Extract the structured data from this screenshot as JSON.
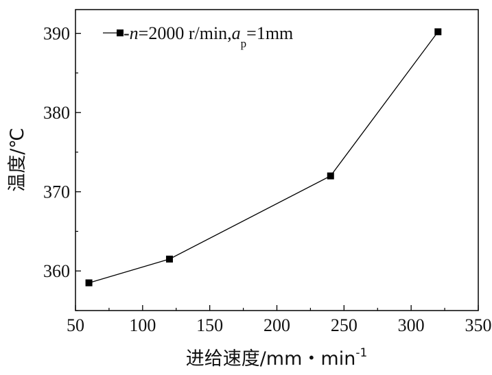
{
  "chart_data": {
    "type": "line",
    "xlabel": "进给速度/mm・min",
    "xlabel_sup": "-1",
    "ylabel": "温度/℃",
    "xlim": [
      50,
      350
    ],
    "ylim": [
      355,
      393
    ],
    "x_ticks": [
      "50",
      "100",
      "150",
      "200",
      "250",
      "300",
      "350"
    ],
    "y_ticks": [
      "360",
      "370",
      "380",
      "390"
    ],
    "x_tick_values": [
      50,
      100,
      150,
      200,
      250,
      300,
      350
    ],
    "y_tick_values": [
      360,
      370,
      380,
      390
    ],
    "grid": false,
    "legend_position": "top-left",
    "series": [
      {
        "legend": {
          "prefix": "-",
          "n_var": "n",
          "n_value": "=2000 r/min,",
          "a_var": "a",
          "a_sub": "p",
          "a_value": "=1mm"
        },
        "marker": "square",
        "color": "#000000",
        "x": [
          60,
          120,
          240,
          320
        ],
        "y": [
          358.5,
          361.5,
          372,
          390.2
        ]
      }
    ]
  }
}
